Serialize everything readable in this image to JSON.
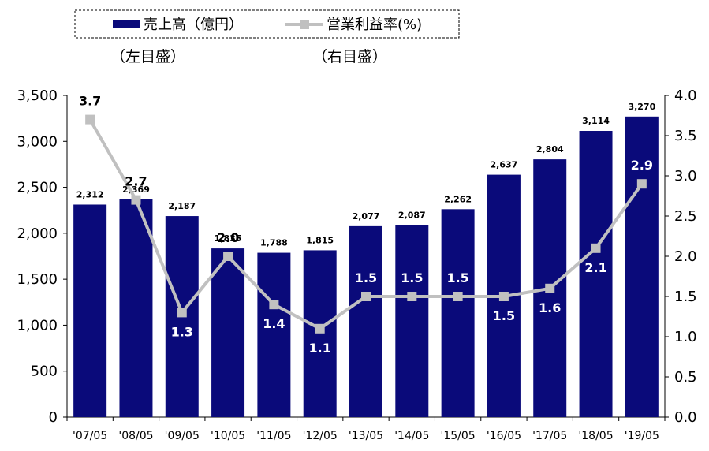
{
  "chart_data": {
    "type": "bar",
    "categories": [
      "'07/05",
      "'08/05",
      "'09/05",
      "'10/05",
      "'11/05",
      "'12/05",
      "'13/05",
      "'14/05",
      "'15/05",
      "'16/05",
      "'17/05",
      "'18/05",
      "'19/05"
    ],
    "series": [
      {
        "name": "売上高（億円）",
        "type": "bar",
        "axis": "left",
        "values": [
          2312,
          2369,
          2187,
          1835,
          1788,
          1815,
          2077,
          2087,
          2262,
          2637,
          2804,
          3114,
          3270
        ],
        "labels": [
          "2,312",
          "2,369",
          "2,187",
          "1,835",
          "1,788",
          "1,815",
          "2,077",
          "2,087",
          "2,262",
          "2,637",
          "2,804",
          "3,114",
          "3,270"
        ]
      },
      {
        "name": "営業利益率(%)",
        "type": "line",
        "axis": "right",
        "values": [
          3.7,
          2.7,
          1.3,
          2.0,
          1.4,
          1.1,
          1.5,
          1.5,
          1.5,
          1.5,
          1.6,
          2.1,
          2.9
        ],
        "labels": [
          "3.7",
          "2.7",
          "1.3",
          "2.0",
          "1.4",
          "1.1",
          "1.5",
          "1.5",
          "1.5",
          "1.5",
          "1.6",
          "2.1",
          "2.9"
        ]
      }
    ],
    "left_axis": {
      "ylim": [
        0,
        3500
      ],
      "ticks": [
        0,
        500,
        1000,
        1500,
        2000,
        2500,
        3000,
        3500
      ],
      "tick_labels": [
        "0",
        "500",
        "1,000",
        "1,500",
        "2,000",
        "2,500",
        "3,000",
        "3,500"
      ],
      "note": "（左目盛）"
    },
    "right_axis": {
      "ylim": [
        0,
        4.0
      ],
      "ticks": [
        0,
        0.5,
        1.0,
        1.5,
        2.0,
        2.5,
        3.0,
        3.5,
        4.0
      ],
      "tick_labels": [
        "0.0",
        "0.5",
        "1.0",
        "1.5",
        "2.0",
        "2.5",
        "3.0",
        "3.5",
        "4.0"
      ],
      "note": "（右目盛）"
    },
    "legend_position": "top-center",
    "grid": false,
    "colors": {
      "bar": "#0a0a7a",
      "line": "#c0c0c0",
      "label_on_bar": "#ffffff",
      "label_outside": "#000000"
    }
  }
}
